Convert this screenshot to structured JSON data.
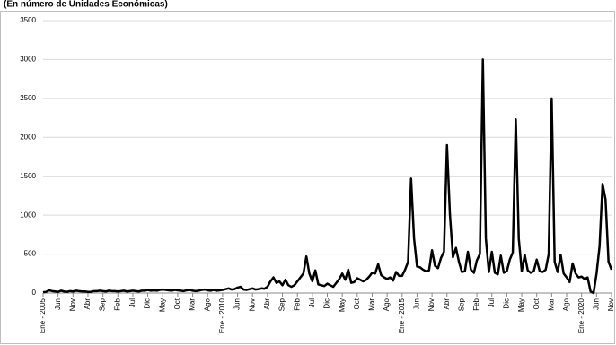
{
  "chart_data": {
    "type": "line",
    "title": "(En número de Unidades Económicas)",
    "categories": [
      "Ene - 2005",
      null,
      null,
      null,
      null,
      "Jun",
      null,
      null,
      null,
      null,
      "Nov",
      null,
      null,
      null,
      null,
      "Abr",
      null,
      null,
      null,
      null,
      "Sep",
      null,
      null,
      null,
      null,
      "Feb",
      null,
      null,
      null,
      null,
      "Jul",
      null,
      null,
      null,
      null,
      "Dic",
      null,
      null,
      null,
      null,
      "May",
      null,
      null,
      null,
      null,
      "Oct",
      null,
      null,
      null,
      null,
      "Mar",
      null,
      null,
      null,
      null,
      "Ago",
      null,
      null,
      null,
      null,
      "Ene - 2010",
      null,
      null,
      null,
      null,
      "Jun",
      null,
      null,
      null,
      null,
      "Nov",
      null,
      null,
      null,
      null,
      "Abr",
      null,
      null,
      null,
      null,
      "Sep",
      null,
      null,
      null,
      null,
      "Feb",
      null,
      null,
      null,
      null,
      "Jul",
      null,
      null,
      null,
      null,
      "Dic",
      null,
      null,
      null,
      null,
      "May",
      null,
      null,
      null,
      null,
      "Oct",
      null,
      null,
      null,
      null,
      "Mar",
      null,
      null,
      null,
      null,
      "Ago",
      null,
      null,
      null,
      null,
      "Ene - 2015",
      null,
      null,
      null,
      null,
      "Jun",
      null,
      null,
      null,
      null,
      "Nov",
      null,
      null,
      null,
      null,
      "Abr",
      null,
      null,
      null,
      null,
      "Sep",
      null,
      null,
      null,
      null,
      "Feb",
      null,
      null,
      null,
      null,
      "Jul",
      null,
      null,
      null,
      null,
      "Dic",
      null,
      null,
      null,
      null,
      "May",
      null,
      null,
      null,
      null,
      "Oct",
      null,
      null,
      null,
      null,
      "Mar",
      null,
      null,
      null,
      null,
      "Ago",
      null,
      null,
      null,
      null,
      "Ene - 2020",
      null,
      null,
      null,
      null,
      "Jun",
      null,
      null,
      null,
      null,
      "Nov"
    ],
    "values": [
      10,
      15,
      35,
      25,
      20,
      15,
      30,
      20,
      15,
      25,
      20,
      30,
      25,
      20,
      20,
      15,
      15,
      25,
      25,
      30,
      25,
      20,
      30,
      25,
      25,
      20,
      25,
      30,
      20,
      25,
      30,
      25,
      20,
      30,
      30,
      40,
      30,
      35,
      30,
      40,
      45,
      40,
      35,
      30,
      40,
      35,
      30,
      25,
      35,
      40,
      30,
      25,
      30,
      40,
      45,
      35,
      30,
      40,
      30,
      35,
      40,
      50,
      60,
      45,
      50,
      70,
      80,
      45,
      40,
      50,
      60,
      45,
      50,
      60,
      55,
      80,
      150,
      200,
      130,
      150,
      100,
      170,
      100,
      80,
      100,
      150,
      200,
      250,
      470,
      250,
      150,
      290,
      110,
      100,
      90,
      120,
      100,
      80,
      130,
      180,
      250,
      170,
      300,
      130,
      140,
      190,
      170,
      150,
      170,
      210,
      260,
      250,
      370,
      230,
      200,
      180,
      200,
      160,
      270,
      220,
      220,
      300,
      400,
      1470,
      700,
      340,
      330,
      300,
      280,
      290,
      550,
      350,
      320,
      450,
      530,
      1900,
      1000,
      460,
      580,
      400,
      270,
      280,
      530,
      300,
      260,
      420,
      500,
      3000,
      700,
      270,
      530,
      260,
      240,
      480,
      260,
      280,
      430,
      520,
      2230,
      700,
      280,
      490,
      290,
      260,
      280,
      430,
      280,
      270,
      300,
      500,
      2500,
      400,
      270,
      490,
      250,
      200,
      140,
      380,
      250,
      200,
      210,
      180,
      200,
      20,
      0,
      250,
      600,
      1400,
      1200,
      400,
      300
    ],
    "color": "#000000",
    "ylim": [
      0,
      3500
    ],
    "yticks": [
      0,
      500,
      1000,
      1500,
      2000,
      2500,
      3000,
      3500
    ],
    "grid": true
  }
}
